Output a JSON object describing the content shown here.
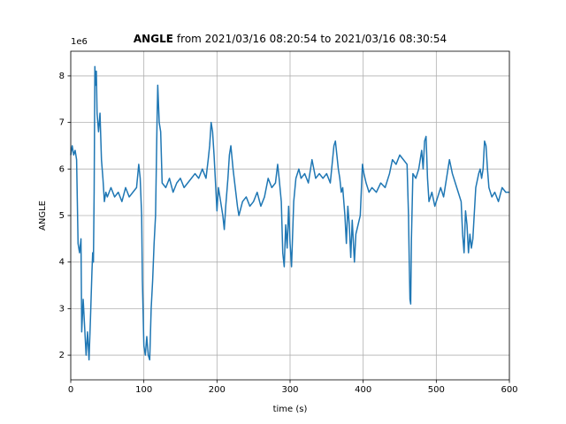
{
  "chart_data": {
    "type": "line",
    "title": {
      "bold": "ANGLE",
      "rest": "from 2021/03/16 08:20:54 to 2021/03/16 08:30:54"
    },
    "x_label": "time (s)",
    "y_label": "ANGLE",
    "y_offset_label": "1e6",
    "color": "#1f77b4",
    "grid": true,
    "xlim": [
      0,
      600
    ],
    "xticks": [
      0,
      100,
      200,
      300,
      400,
      500,
      600
    ],
    "ylim": [
      1.47,
      8.53
    ],
    "yticks": [
      2,
      3,
      4,
      5,
      6,
      7,
      8
    ],
    "x": [
      0,
      2,
      4,
      6,
      8,
      10,
      12,
      14,
      15,
      17,
      19,
      21,
      23,
      25,
      27,
      29,
      30,
      31,
      32,
      33,
      34,
      35,
      36,
      38,
      40,
      42,
      44,
      46,
      48,
      50,
      55,
      60,
      65,
      70,
      75,
      80,
      85,
      90,
      93,
      95,
      97,
      98,
      100,
      102,
      104,
      106,
      108,
      110,
      112,
      114,
      116,
      118,
      119,
      121,
      123,
      125,
      130,
      135,
      140,
      145,
      150,
      155,
      160,
      165,
      170,
      175,
      180,
      185,
      188,
      190,
      192,
      194,
      196,
      198,
      200,
      202,
      205,
      208,
      210,
      212,
      215,
      217,
      219,
      222,
      225,
      228,
      230,
      235,
      240,
      245,
      250,
      255,
      260,
      265,
      270,
      275,
      280,
      283,
      285,
      288,
      290,
      292,
      294,
      296,
      298,
      300,
      302,
      305,
      308,
      312,
      315,
      320,
      325,
      330,
      335,
      340,
      345,
      350,
      355,
      360,
      362,
      364,
      366,
      368,
      370,
      372,
      375,
      377,
      379,
      381,
      383,
      385,
      388,
      390,
      393,
      396,
      399,
      401,
      404,
      408,
      412,
      418,
      424,
      430,
      436,
      440,
      445,
      450,
      455,
      460,
      462,
      463,
      464,
      465,
      466,
      468,
      472,
      476,
      480,
      482,
      484,
      486,
      488,
      490,
      494,
      498,
      502,
      506,
      510,
      514,
      518,
      522,
      526,
      530,
      534,
      536,
      538,
      540,
      542,
      544,
      546,
      548,
      550,
      554,
      558,
      560,
      562,
      564,
      566,
      568,
      570,
      572,
      576,
      580,
      585,
      590,
      595,
      600
    ],
    "values": [
      6.3,
      6.5,
      6.3,
      6.4,
      6.2,
      4.4,
      4.2,
      4.5,
      2.5,
      3.2,
      2.6,
      2.0,
      2.5,
      1.9,
      2.8,
      3.8,
      4.2,
      4.0,
      5.5,
      8.2,
      7.8,
      8.1,
      7.2,
      6.8,
      7.2,
      6.2,
      5.8,
      5.3,
      5.5,
      5.4,
      5.6,
      5.4,
      5.5,
      5.3,
      5.6,
      5.4,
      5.5,
      5.6,
      6.1,
      5.8,
      5.0,
      3.6,
      2.2,
      2.0,
      2.4,
      2.0,
      1.9,
      3.0,
      3.6,
      4.4,
      5.0,
      7.0,
      7.8,
      7.0,
      6.8,
      5.7,
      5.6,
      5.8,
      5.5,
      5.7,
      5.8,
      5.6,
      5.7,
      5.8,
      5.9,
      5.8,
      6.0,
      5.8,
      6.2,
      6.5,
      7.0,
      6.8,
      6.3,
      5.7,
      5.1,
      5.6,
      5.3,
      5.0,
      4.7,
      5.2,
      5.8,
      6.3,
      6.5,
      6.0,
      5.6,
      5.2,
      5.0,
      5.3,
      5.4,
      5.2,
      5.3,
      5.5,
      5.2,
      5.4,
      5.8,
      5.6,
      5.7,
      6.1,
      5.8,
      5.3,
      4.2,
      3.9,
      4.8,
      4.3,
      5.2,
      4.4,
      3.9,
      5.3,
      5.8,
      6.0,
      5.8,
      5.9,
      5.7,
      6.2,
      5.8,
      5.9,
      5.8,
      5.9,
      5.7,
      6.5,
      6.6,
      6.3,
      6.0,
      5.8,
      5.5,
      5.6,
      5.0,
      4.4,
      5.2,
      4.8,
      4.1,
      4.9,
      4.0,
      4.6,
      4.8,
      5.0,
      6.1,
      5.9,
      5.7,
      5.5,
      5.6,
      5.5,
      5.7,
      5.6,
      5.9,
      6.2,
      6.1,
      6.3,
      6.2,
      6.1,
      5.0,
      4.0,
      3.2,
      3.1,
      4.5,
      5.9,
      5.8,
      6.0,
      6.4,
      6.0,
      6.6,
      6.7,
      5.8,
      5.3,
      5.5,
      5.2,
      5.4,
      5.6,
      5.4,
      5.8,
      6.2,
      5.9,
      5.7,
      5.5,
      5.3,
      4.6,
      4.2,
      5.1,
      4.8,
      4.2,
      4.6,
      4.3,
      4.5,
      5.6,
      5.9,
      6.0,
      5.8,
      6.0,
      6.6,
      6.5,
      6.0,
      5.6,
      5.4,
      5.5,
      5.3,
      5.6,
      5.5,
      5.5
    ]
  }
}
